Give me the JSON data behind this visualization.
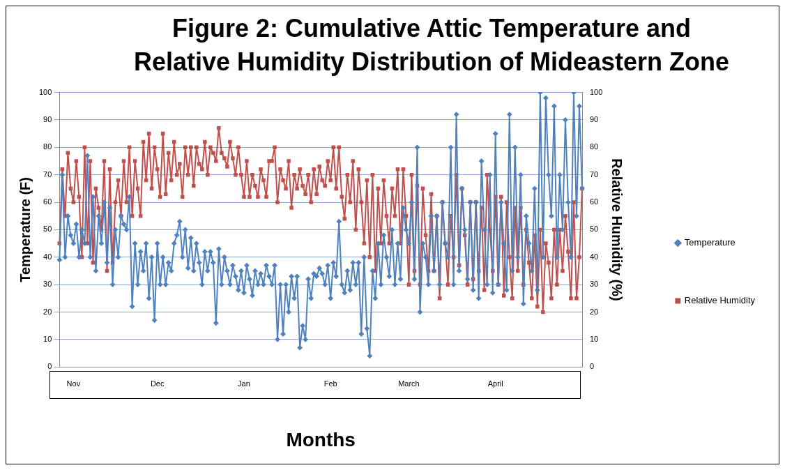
{
  "chart_data": {
    "type": "line",
    "title": "Figure 2: Cumulative Attic Temperature and Relative Humidity  Distribution of Mideastern Zone",
    "xlabel": "Months",
    "ylabel": "Temperature (F)",
    "y2label": "Relative Humidity (%)",
    "categories": [
      null,
      null,
      null,
      null,
      null,
      "Nov",
      null,
      null,
      null,
      null,
      null,
      null,
      null,
      null,
      null,
      null,
      null,
      null,
      null,
      null,
      null,
      null,
      null,
      null,
      null,
      null,
      null,
      null,
      null,
      null,
      null,
      null,
      null,
      null,
      null,
      "Dec",
      null,
      null,
      null,
      null,
      null,
      null,
      null,
      null,
      null,
      null,
      null,
      null,
      null,
      null,
      null,
      null,
      null,
      null,
      null,
      null,
      null,
      null,
      null,
      null,
      null,
      null,
      null,
      null,
      null,
      null,
      "Jan",
      null,
      null,
      null,
      null,
      null,
      null,
      null,
      null,
      null,
      null,
      null,
      null,
      null,
      null,
      null,
      null,
      null,
      null,
      null,
      null,
      null,
      null,
      null,
      null,
      null,
      null,
      null,
      null,
      null,
      null,
      "Feb",
      null,
      null,
      null,
      null,
      null,
      null,
      null,
      null,
      null,
      null,
      null,
      null,
      null,
      null,
      null,
      null,
      null,
      null,
      null,
      null,
      null,
      null,
      null,
      null,
      null,
      null,
      null,
      "March",
      null,
      null,
      null,
      null,
      null,
      null,
      null,
      null,
      null,
      null,
      null,
      null,
      null,
      null,
      null,
      null,
      null,
      null,
      null,
      null,
      null,
      null,
      null,
      null,
      null,
      null,
      null,
      null,
      null,
      null,
      "April",
      null,
      null,
      null,
      null,
      null,
      null,
      null,
      null,
      null,
      null,
      null,
      null,
      null,
      null,
      null,
      null,
      null,
      null,
      null,
      null,
      null,
      null,
      null,
      null,
      null,
      null,
      null,
      null,
      null,
      null,
      null
    ],
    "ylim": [
      0,
      100
    ],
    "yticks": [
      0,
      10,
      20,
      30,
      40,
      50,
      60,
      70,
      80,
      90,
      100
    ],
    "y2lim": [
      0,
      100
    ],
    "y2ticks": [
      0,
      10,
      20,
      30,
      40,
      50,
      60,
      70,
      80,
      90,
      100
    ],
    "grid": "y",
    "legend": "right",
    "line_style": "solid",
    "series": [
      {
        "name": "Temperature",
        "color": "#4f81bd",
        "marker": "diamond",
        "values": [
          39,
          70,
          40,
          55,
          48,
          45,
          52,
          40,
          50,
          45,
          77,
          40,
          62,
          35,
          55,
          45,
          60,
          38,
          58,
          30,
          50,
          40,
          55,
          52,
          50,
          62,
          22,
          45,
          30,
          42,
          35,
          45,
          25,
          40,
          17,
          45,
          30,
          40,
          30,
          38,
          35,
          45,
          48,
          53,
          40,
          50,
          36,
          47,
          35,
          45,
          38,
          30,
          42,
          35,
          42,
          38,
          16,
          43,
          30,
          40,
          35,
          30,
          37,
          33,
          28,
          35,
          27,
          37,
          32,
          26,
          35,
          30,
          34,
          30,
          37,
          33,
          30,
          37,
          10,
          30,
          12,
          30,
          20,
          33,
          25,
          33,
          7,
          15,
          10,
          32,
          25,
          34,
          33,
          36,
          34,
          30,
          37,
          25,
          38,
          33,
          53,
          30,
          27,
          35,
          28,
          38,
          30,
          38,
          12,
          40,
          14,
          4,
          35,
          25,
          45,
          30,
          48,
          40,
          33,
          50,
          30,
          45,
          32,
          58,
          50,
          45,
          60,
          32,
          80,
          20,
          45,
          40,
          30,
          55,
          35,
          55,
          30,
          60,
          45,
          40,
          80,
          30,
          92,
          35,
          65,
          50,
          32,
          60,
          28,
          60,
          25,
          75,
          50,
          30,
          70,
          27,
          85,
          30,
          60,
          45,
          28,
          92,
          35,
          80,
          40,
          70,
          23,
          55,
          45,
          35,
          65,
          28,
          100,
          40,
          98,
          70,
          55,
          95,
          40,
          70,
          50,
          90,
          60,
          40,
          100,
          55,
          95,
          65
        ]
      },
      {
        "name": "Relative Humidity",
        "color": "#c0504d",
        "marker": "square",
        "axis": "y2",
        "values": [
          45,
          72,
          55,
          78,
          65,
          60,
          75,
          62,
          40,
          80,
          45,
          75,
          38,
          65,
          58,
          50,
          75,
          35,
          72,
          38,
          60,
          68,
          55,
          75,
          60,
          80,
          55,
          75,
          65,
          55,
          82,
          68,
          85,
          65,
          80,
          72,
          62,
          85,
          63,
          78,
          68,
          82,
          70,
          74,
          62,
          80,
          70,
          80,
          66,
          80,
          74,
          72,
          82,
          70,
          80,
          78,
          75,
          87,
          78,
          76,
          73,
          82,
          76,
          70,
          80,
          70,
          62,
          75,
          62,
          70,
          66,
          62,
          72,
          68,
          62,
          75,
          75,
          80,
          60,
          72,
          68,
          65,
          75,
          58,
          70,
          65,
          72,
          66,
          63,
          70,
          60,
          72,
          63,
          73,
          68,
          66,
          75,
          68,
          80,
          65,
          80,
          62,
          54,
          70,
          60,
          75,
          50,
          72,
          60,
          45,
          68,
          40,
          70,
          35,
          65,
          45,
          68,
          55,
          45,
          65,
          55,
          72,
          45,
          72,
          55,
          30,
          70,
          35,
          66,
          30,
          65,
          48,
          35,
          63,
          35,
          55,
          25,
          60,
          45,
          30,
          55,
          40,
          70,
          37,
          65,
          48,
          30,
          60,
          32,
          60,
          35,
          58,
          28,
          70,
          50,
          35,
          62,
          30,
          62,
          26,
          60,
          40,
          25,
          58,
          35,
          58,
          30,
          50,
          38,
          25,
          48,
          22,
          50,
          20,
          45,
          38,
          25,
          50,
          30,
          50,
          35,
          55,
          42,
          25,
          60,
          25,
          40,
          65
        ]
      }
    ]
  }
}
